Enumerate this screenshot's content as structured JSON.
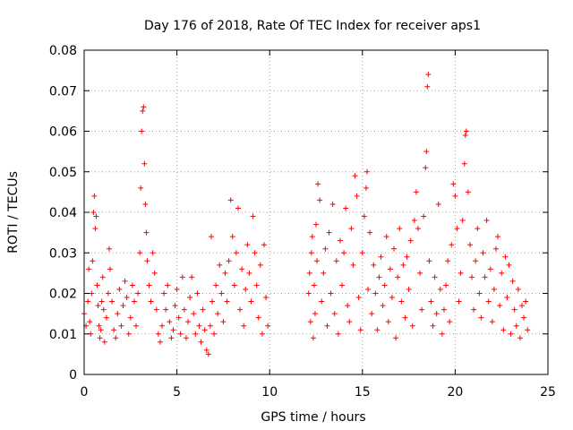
{
  "chart_data": {
    "type": "scatter",
    "title": "Day 176 of 2018, Rate Of TEC Index for receiver aps1",
    "xlabel": "GPS time / hours",
    "ylabel": "ROTI / TECUs",
    "xlim": [
      0,
      25
    ],
    "ylim": [
      0,
      0.08
    ],
    "xticks": [
      0,
      5,
      10,
      15,
      20,
      25
    ],
    "yticks": [
      0,
      0.01,
      0.02,
      0.03,
      0.04,
      0.05,
      0.06,
      0.07,
      0.08
    ],
    "xtick_labels": [
      "0",
      "5",
      "10",
      "15",
      "20",
      "25"
    ],
    "ytick_labels": [
      "0",
      "0.01",
      "0.02",
      "0.03",
      "0.04",
      "0.05",
      "0.06",
      "0.07",
      "0.08"
    ],
    "grid": true,
    "legend": "none",
    "marker": "plus",
    "color": "#ff0000",
    "series": [
      {
        "points": [
          [
            0.0,
            0.015
          ],
          [
            0.1,
            0.012
          ],
          [
            0.2,
            0.018
          ],
          [
            0.25,
            0.026
          ],
          [
            0.3,
            0.013
          ],
          [
            0.35,
            0.01
          ],
          [
            0.4,
            0.02
          ],
          [
            0.45,
            0.028
          ],
          [
            0.5,
            0.04
          ],
          [
            0.55,
            0.044
          ],
          [
            0.6,
            0.036
          ],
          [
            0.65,
            0.039
          ],
          [
            0.7,
            0.022
          ],
          [
            0.75,
            0.017
          ],
          [
            0.8,
            0.012
          ],
          [
            0.85,
            0.009
          ],
          [
            0.9,
            0.011
          ],
          [
            0.95,
            0.018
          ],
          [
            1.0,
            0.024
          ],
          [
            1.05,
            0.016
          ],
          [
            1.1,
            0.008
          ],
          [
            1.2,
            0.014
          ],
          [
            1.3,
            0.02
          ],
          [
            1.35,
            0.031
          ],
          [
            1.4,
            0.026
          ],
          [
            1.5,
            0.018
          ],
          [
            1.6,
            0.011
          ],
          [
            1.7,
            0.009
          ],
          [
            1.8,
            0.015
          ],
          [
            1.9,
            0.021
          ],
          [
            2.0,
            0.012
          ],
          [
            2.1,
            0.017
          ],
          [
            2.2,
            0.023
          ],
          [
            2.3,
            0.019
          ],
          [
            2.4,
            0.01
          ],
          [
            2.5,
            0.014
          ],
          [
            2.6,
            0.022
          ],
          [
            2.7,
            0.018
          ],
          [
            2.8,
            0.012
          ],
          [
            2.9,
            0.02
          ],
          [
            3.0,
            0.03
          ],
          [
            3.05,
            0.046
          ],
          [
            3.1,
            0.06
          ],
          [
            3.15,
            0.065
          ],
          [
            3.2,
            0.066
          ],
          [
            3.25,
            0.052
          ],
          [
            3.3,
            0.042
          ],
          [
            3.35,
            0.035
          ],
          [
            3.4,
            0.028
          ],
          [
            3.5,
            0.022
          ],
          [
            3.6,
            0.018
          ],
          [
            3.7,
            0.03
          ],
          [
            3.8,
            0.025
          ],
          [
            3.9,
            0.016
          ],
          [
            4.0,
            0.01
          ],
          [
            4.1,
            0.008
          ],
          [
            4.2,
            0.012
          ],
          [
            4.3,
            0.02
          ],
          [
            4.4,
            0.016
          ],
          [
            4.5,
            0.022
          ],
          [
            4.6,
            0.013
          ],
          [
            4.7,
            0.009
          ],
          [
            4.8,
            0.011
          ],
          [
            4.9,
            0.017
          ],
          [
            5.0,
            0.021
          ],
          [
            5.1,
            0.014
          ],
          [
            5.2,
            0.01
          ],
          [
            5.3,
            0.024
          ],
          [
            5.4,
            0.016
          ],
          [
            5.5,
            0.009
          ],
          [
            5.6,
            0.013
          ],
          [
            5.7,
            0.019
          ],
          [
            5.8,
            0.024
          ],
          [
            5.9,
            0.015
          ],
          [
            6.0,
            0.01
          ],
          [
            6.1,
            0.02
          ],
          [
            6.2,
            0.012
          ],
          [
            6.3,
            0.008
          ],
          [
            6.4,
            0.016
          ],
          [
            6.5,
            0.011
          ],
          [
            6.6,
            0.006
          ],
          [
            6.7,
            0.005
          ],
          [
            6.8,
            0.012
          ],
          [
            6.85,
            0.034
          ],
          [
            6.9,
            0.018
          ],
          [
            7.0,
            0.01
          ],
          [
            7.1,
            0.022
          ],
          [
            7.2,
            0.015
          ],
          [
            7.3,
            0.027
          ],
          [
            7.4,
            0.02
          ],
          [
            7.5,
            0.013
          ],
          [
            7.6,
            0.025
          ],
          [
            7.7,
            0.018
          ],
          [
            7.8,
            0.028
          ],
          [
            7.9,
            0.043
          ],
          [
            8.0,
            0.034
          ],
          [
            8.1,
            0.022
          ],
          [
            8.2,
            0.03
          ],
          [
            8.3,
            0.041
          ],
          [
            8.4,
            0.016
          ],
          [
            8.5,
            0.026
          ],
          [
            8.6,
            0.012
          ],
          [
            8.7,
            0.021
          ],
          [
            8.8,
            0.032
          ],
          [
            8.9,
            0.025
          ],
          [
            9.0,
            0.018
          ],
          [
            9.1,
            0.039
          ],
          [
            9.2,
            0.03
          ],
          [
            9.3,
            0.022
          ],
          [
            9.4,
            0.014
          ],
          [
            9.5,
            0.027
          ],
          [
            9.6,
            0.01
          ],
          [
            9.7,
            0.032
          ],
          [
            9.8,
            0.019
          ],
          [
            9.9,
            0.012
          ],
          [
            12.1,
            0.02
          ],
          [
            12.15,
            0.025
          ],
          [
            12.2,
            0.013
          ],
          [
            12.25,
            0.03
          ],
          [
            12.3,
            0.034
          ],
          [
            12.35,
            0.009
          ],
          [
            12.4,
            0.022
          ],
          [
            12.45,
            0.015
          ],
          [
            12.5,
            0.037
          ],
          [
            12.55,
            0.028
          ],
          [
            12.6,
            0.047
          ],
          [
            12.7,
            0.043
          ],
          [
            12.8,
            0.018
          ],
          [
            12.9,
            0.025
          ],
          [
            13.0,
            0.031
          ],
          [
            13.1,
            0.012
          ],
          [
            13.2,
            0.035
          ],
          [
            13.3,
            0.02
          ],
          [
            13.4,
            0.042
          ],
          [
            13.5,
            0.015
          ],
          [
            13.6,
            0.028
          ],
          [
            13.7,
            0.01
          ],
          [
            13.8,
            0.033
          ],
          [
            13.9,
            0.022
          ],
          [
            14.0,
            0.03
          ],
          [
            14.1,
            0.041
          ],
          [
            14.2,
            0.017
          ],
          [
            14.3,
            0.013
          ],
          [
            14.4,
            0.036
          ],
          [
            14.5,
            0.027
          ],
          [
            14.6,
            0.049
          ],
          [
            14.7,
            0.044
          ],
          [
            14.8,
            0.019
          ],
          [
            14.9,
            0.011
          ],
          [
            15.0,
            0.03
          ],
          [
            15.1,
            0.039
          ],
          [
            15.2,
            0.046
          ],
          [
            15.25,
            0.05
          ],
          [
            15.3,
            0.021
          ],
          [
            15.4,
            0.035
          ],
          [
            15.5,
            0.015
          ],
          [
            15.6,
            0.027
          ],
          [
            15.7,
            0.02
          ],
          [
            15.8,
            0.011
          ],
          [
            15.9,
            0.024
          ],
          [
            16.0,
            0.029
          ],
          [
            16.1,
            0.017
          ],
          [
            16.2,
            0.022
          ],
          [
            16.3,
            0.034
          ],
          [
            16.4,
            0.013
          ],
          [
            16.5,
            0.026
          ],
          [
            16.6,
            0.019
          ],
          [
            16.7,
            0.031
          ],
          [
            16.8,
            0.009
          ],
          [
            16.9,
            0.024
          ],
          [
            17.0,
            0.036
          ],
          [
            17.1,
            0.018
          ],
          [
            17.2,
            0.027
          ],
          [
            17.3,
            0.014
          ],
          [
            17.4,
            0.029
          ],
          [
            17.5,
            0.021
          ],
          [
            17.6,
            0.033
          ],
          [
            17.7,
            0.012
          ],
          [
            17.8,
            0.038
          ],
          [
            17.9,
            0.045
          ],
          [
            18.0,
            0.036
          ],
          [
            18.1,
            0.025
          ],
          [
            18.2,
            0.016
          ],
          [
            18.3,
            0.039
          ],
          [
            18.4,
            0.051
          ],
          [
            18.45,
            0.055
          ],
          [
            18.5,
            0.071
          ],
          [
            18.55,
            0.074
          ],
          [
            18.6,
            0.028
          ],
          [
            18.7,
            0.018
          ],
          [
            18.8,
            0.012
          ],
          [
            18.9,
            0.024
          ],
          [
            19.0,
            0.015
          ],
          [
            19.1,
            0.042
          ],
          [
            19.2,
            0.021
          ],
          [
            19.3,
            0.01
          ],
          [
            19.4,
            0.016
          ],
          [
            19.5,
            0.022
          ],
          [
            19.6,
            0.028
          ],
          [
            19.7,
            0.013
          ],
          [
            19.8,
            0.032
          ],
          [
            19.9,
            0.047
          ],
          [
            20.0,
            0.044
          ],
          [
            20.1,
            0.036
          ],
          [
            20.2,
            0.018
          ],
          [
            20.3,
            0.025
          ],
          [
            20.4,
            0.038
          ],
          [
            20.5,
            0.052
          ],
          [
            20.55,
            0.059
          ],
          [
            20.6,
            0.06
          ],
          [
            20.7,
            0.045
          ],
          [
            20.8,
            0.032
          ],
          [
            20.9,
            0.024
          ],
          [
            21.0,
            0.016
          ],
          [
            21.1,
            0.028
          ],
          [
            21.2,
            0.036
          ],
          [
            21.3,
            0.02
          ],
          [
            21.4,
            0.014
          ],
          [
            21.5,
            0.03
          ],
          [
            21.6,
            0.024
          ],
          [
            21.7,
            0.038
          ],
          [
            21.8,
            0.018
          ],
          [
            21.9,
            0.026
          ],
          [
            22.0,
            0.013
          ],
          [
            22.1,
            0.021
          ],
          [
            22.2,
            0.031
          ],
          [
            22.3,
            0.034
          ],
          [
            22.4,
            0.017
          ],
          [
            22.5,
            0.025
          ],
          [
            22.6,
            0.011
          ],
          [
            22.7,
            0.029
          ],
          [
            22.8,
            0.019
          ],
          [
            22.9,
            0.027
          ],
          [
            23.0,
            0.01
          ],
          [
            23.1,
            0.023
          ],
          [
            23.2,
            0.016
          ],
          [
            23.3,
            0.012
          ],
          [
            23.4,
            0.021
          ],
          [
            23.5,
            0.009
          ],
          [
            23.6,
            0.017
          ],
          [
            23.7,
            0.014
          ],
          [
            23.8,
            0.018
          ],
          [
            23.9,
            0.011
          ]
        ]
      }
    ]
  }
}
